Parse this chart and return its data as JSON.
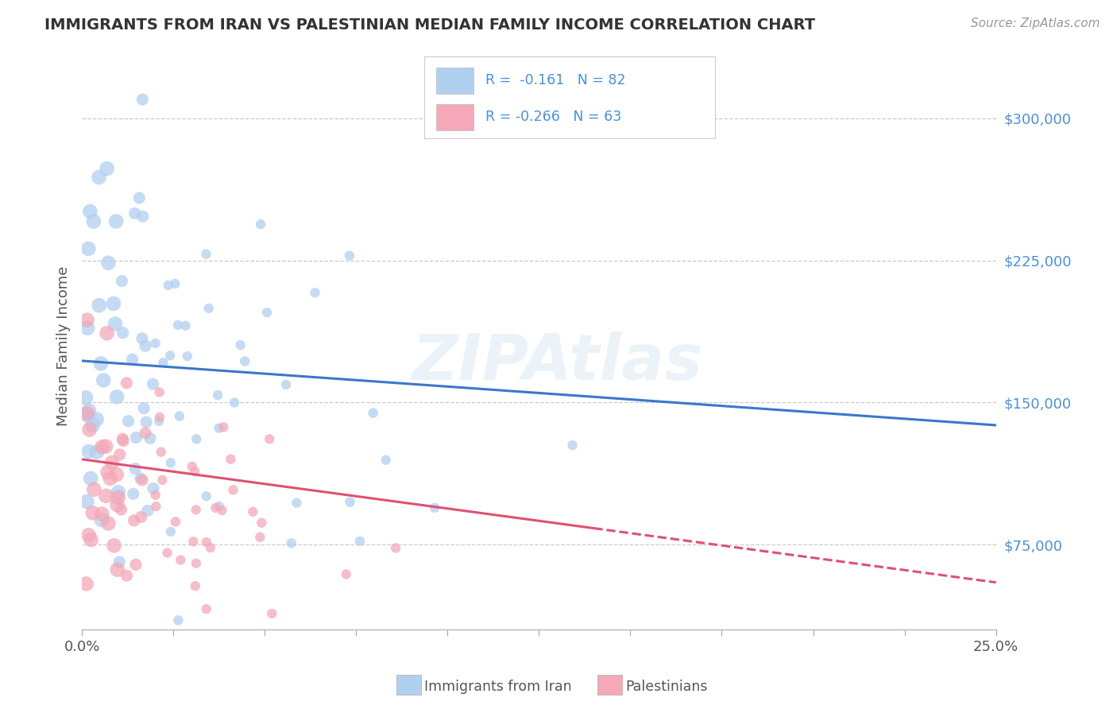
{
  "title": "IMMIGRANTS FROM IRAN VS PALESTINIAN MEDIAN FAMILY INCOME CORRELATION CHART",
  "source": "Source: ZipAtlas.com",
  "ylabel": "Median Family Income",
  "xlim": [
    0.0,
    25.0
  ],
  "ylim": [
    30000,
    330000
  ],
  "ytick_vals": [
    75000,
    150000,
    225000,
    300000
  ],
  "ytick_labels": [
    "$75,000",
    "$150,000",
    "$225,000",
    "$300,000"
  ],
  "iran_R": -0.161,
  "iran_N": 82,
  "pal_R": -0.266,
  "pal_N": 63,
  "iran_color": "#b0d0f0",
  "pal_color": "#f4a8b8",
  "iran_line_color": "#3a78c9",
  "pal_line_color": "#e05070",
  "background_color": "#ffffff",
  "watermark": "ZIPAtlas",
  "legend_iran_text": "R =  -0.161   N = 82",
  "legend_pal_text": "R = -0.266   N = 63",
  "bottom_legend_iran": "Immigrants from Iran",
  "bottom_legend_pal": "Palestinians",
  "iran_line_x0": 0.0,
  "iran_line_y0": 172000,
  "iran_line_x1": 25.0,
  "iran_line_y1": 138000,
  "pal_line_x0": 0.0,
  "pal_line_y0": 120000,
  "pal_line_x1": 25.0,
  "pal_line_y1": 55000,
  "pal_dash_start": 14.0,
  "xtick_vals": [
    0,
    2.5,
    5.0,
    7.5,
    10.0,
    12.5,
    15.0,
    17.5,
    20.0,
    22.5,
    25.0
  ]
}
